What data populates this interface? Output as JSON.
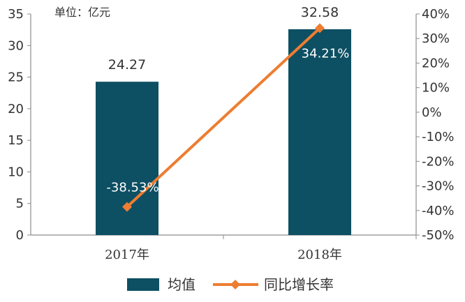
{
  "chart_data": {
    "type": "bar",
    "unit_label": "单位：亿元",
    "categories": [
      "2017年",
      "2018年"
    ],
    "series": [
      {
        "name": "均值",
        "type": "bar",
        "axis": "left",
        "values": [
          24.27,
          32.58
        ],
        "labels": [
          "24.27",
          "32.58"
        ],
        "color": "#0d4f63"
      },
      {
        "name": "同比增长率",
        "type": "line",
        "axis": "right",
        "values": [
          -38.53,
          34.21
        ],
        "labels": [
          "-38.53%",
          "34.21%"
        ],
        "color": "#ed7d31"
      }
    ],
    "y_left": {
      "min": 0,
      "max": 35,
      "ticks": [
        "0",
        "5",
        "10",
        "15",
        "20",
        "25",
        "30",
        "35"
      ]
    },
    "y_right": {
      "min": -50,
      "max": 40,
      "ticks": [
        "-50%",
        "-40%",
        "-30%",
        "-20%",
        "-10%",
        "0%",
        "10%",
        "20%",
        "30%",
        "40%"
      ]
    },
    "grid": false,
    "legend_position": "bottom"
  }
}
